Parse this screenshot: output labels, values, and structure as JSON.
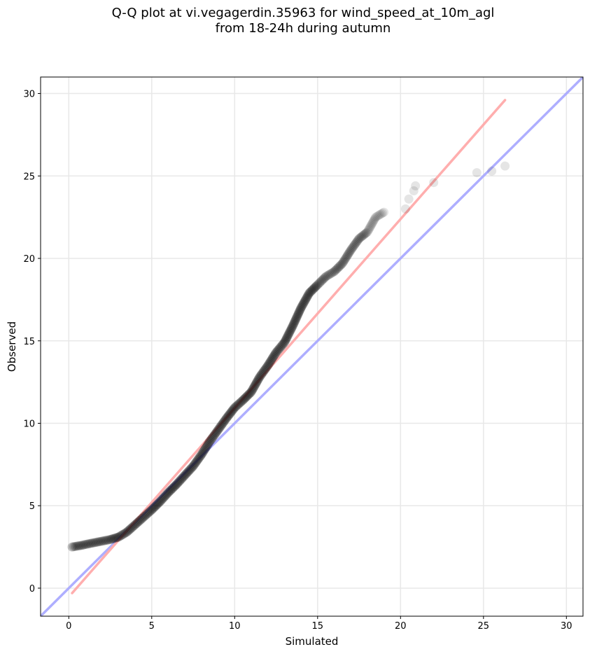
{
  "chart_data": {
    "type": "scatter",
    "title": "Q-Q plot at vi.vegagerdin.35963 for wind_speed_at_10m_agl",
    "subtitle": "from 18-24h during autumn",
    "xlabel": "Simulated",
    "ylabel": "Observed",
    "xlim": [
      -1.7,
      31.0
    ],
    "ylim": [
      -1.7,
      31.0
    ],
    "xticks": [
      0,
      5,
      10,
      15,
      20,
      25,
      30
    ],
    "yticks": [
      0,
      5,
      10,
      15,
      20,
      25,
      30
    ],
    "grid": true,
    "colors": {
      "points": "#000000",
      "identity_line": "#aaaaff",
      "fit_line": "#ffaaaa"
    },
    "reference_lines": [
      {
        "role": "identity",
        "color": "#aaaaff",
        "x": [
          -1.7,
          31.0
        ],
        "y": [
          -1.7,
          31.0
        ]
      },
      {
        "role": "fit",
        "color": "#ffaaaa",
        "x": [
          0.2,
          26.3
        ],
        "y": [
          -0.3,
          29.6
        ]
      }
    ],
    "quantiles_curve": [
      [
        0.2,
        2.5
      ],
      [
        0.5,
        2.55
      ],
      [
        0.8,
        2.6
      ],
      [
        1.0,
        2.65
      ],
      [
        1.5,
        2.75
      ],
      [
        2.0,
        2.85
      ],
      [
        2.5,
        2.95
      ],
      [
        3.0,
        3.1
      ],
      [
        3.5,
        3.4
      ],
      [
        4.0,
        3.85
      ],
      [
        4.5,
        4.3
      ],
      [
        5.0,
        4.75
      ],
      [
        5.5,
        5.25
      ],
      [
        6.0,
        5.8
      ],
      [
        6.5,
        6.3
      ],
      [
        7.0,
        6.85
      ],
      [
        7.5,
        7.4
      ],
      [
        8.0,
        8.1
      ],
      [
        8.5,
        8.9
      ],
      [
        9.0,
        9.6
      ],
      [
        9.5,
        10.3
      ],
      [
        10.0,
        10.95
      ],
      [
        10.5,
        11.4
      ],
      [
        11.0,
        11.9
      ],
      [
        11.5,
        12.8
      ],
      [
        12.0,
        13.5
      ],
      [
        12.5,
        14.3
      ],
      [
        13.0,
        14.9
      ],
      [
        13.5,
        15.9
      ],
      [
        14.0,
        17.0
      ],
      [
        14.5,
        17.9
      ],
      [
        15.0,
        18.4
      ],
      [
        15.5,
        18.9
      ],
      [
        16.0,
        19.2
      ],
      [
        16.5,
        19.7
      ],
      [
        17.0,
        20.5
      ],
      [
        17.5,
        21.2
      ],
      [
        18.0,
        21.6
      ],
      [
        18.5,
        22.5
      ],
      [
        19.0,
        22.8
      ]
    ],
    "tail_points": [
      [
        20.3,
        23.0
      ],
      [
        20.5,
        23.6
      ],
      [
        20.8,
        24.1
      ],
      [
        20.9,
        24.4
      ],
      [
        22.0,
        24.6
      ],
      [
        24.6,
        25.2
      ],
      [
        25.5,
        25.3
      ],
      [
        26.3,
        25.6
      ]
    ]
  }
}
